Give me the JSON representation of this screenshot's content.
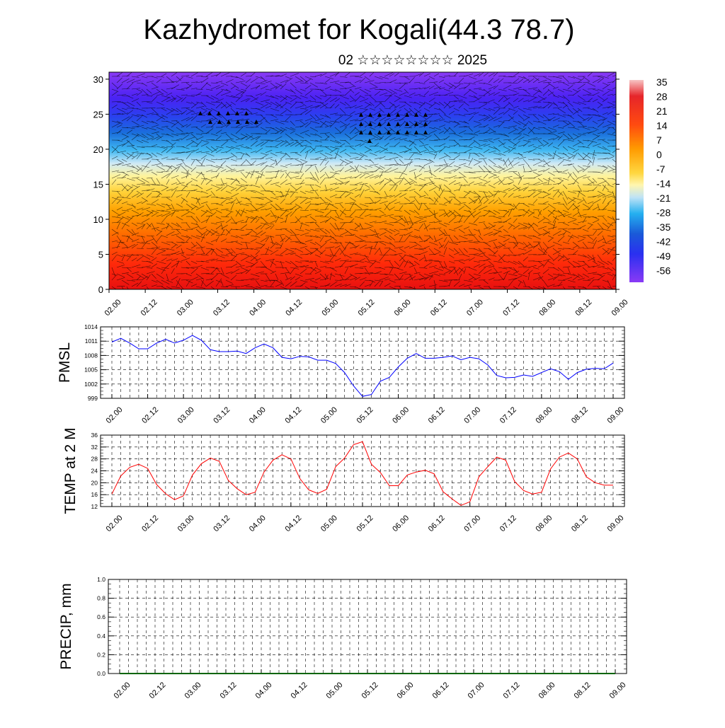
{
  "header": {
    "title": "Kazhydromet for Kogali(44.3 78.7)",
    "subtitle": "02 ☆☆☆☆☆☆☆☆ 2025"
  },
  "colors": {
    "pmsl_line": "#0000ff",
    "temp_line": "#ff0000",
    "colorbar": [
      "#fdc8c8",
      "#e31a1c",
      "#ff4500",
      "#ff8c00",
      "#ffc107",
      "#fff59d",
      "#cfe8f5",
      "#29b6f6",
      "#1565c0",
      "#3f20f5",
      "#7b2ff7"
    ]
  },
  "chart_data": [
    {
      "type": "heatmap",
      "name_id": "cross-section",
      "ylim": [
        0,
        31
      ],
      "y_ticks": [
        0,
        5,
        10,
        15,
        20,
        25,
        30
      ],
      "x_ticks": [
        "02.00",
        "02.12",
        "03.00",
        "03.12",
        "04.00",
        "04.12",
        "05.00",
        "05.12",
        "06.00",
        "06.12",
        "07.00",
        "07.12",
        "08.00",
        "08.12",
        "09.00"
      ],
      "colorbar_labels": [
        "35",
        "28",
        "21",
        "14",
        "7",
        "0",
        "-7",
        "-14",
        "-21",
        "-28",
        "-35",
        "-42",
        "-49",
        "-56"
      ]
    },
    {
      "type": "line",
      "ylabel": "PMSL",
      "ylim": [
        999,
        1014
      ],
      "y_ticks": [
        999,
        1002,
        1005,
        1008,
        1011,
        1014
      ],
      "x_ticks": [
        "02.00",
        "02.12",
        "03.00",
        "03.12",
        "04.00",
        "04.12",
        "05.00",
        "05.12",
        "06.00",
        "06.12",
        "07.00",
        "07.12",
        "08.00",
        "08.12",
        "09.00"
      ],
      "x_step_hours": 3,
      "values": [
        1010.8,
        1011.6,
        1010.6,
        1009.4,
        1009.4,
        1010.6,
        1011.4,
        1010.6,
        1011.2,
        1012.2,
        1011.2,
        1009.2,
        1008.8,
        1008.8,
        1008.9,
        1008.4,
        1009.6,
        1010.4,
        1009.6,
        1007.6,
        1007.3,
        1007.8,
        1007.7,
        1007.0,
        1007.0,
        1006.3,
        1004.4,
        1001.6,
        999.4,
        999.8,
        1002.6,
        1003.4,
        1005.6,
        1007.4,
        1008.4,
        1007.4,
        1007.4,
        1007.6,
        1007.9,
        1007.1,
        1007.6,
        1007.3,
        1006.0,
        1003.8,
        1003.3,
        1003.4,
        1003.9,
        1003.6,
        1004.4,
        1005.2,
        1004.6,
        1003.0,
        1004.4,
        1005.1,
        1005.3,
        1005.2,
        1006.4
      ]
    },
    {
      "type": "line",
      "ylabel": "TEMP at 2 M",
      "ylim": [
        12,
        36
      ],
      "y_ticks": [
        12,
        16,
        20,
        24,
        28,
        32,
        36
      ],
      "x_ticks": [
        "02.00",
        "02.12",
        "03.00",
        "03.12",
        "04.00",
        "04.12",
        "05.00",
        "05.12",
        "06.00",
        "06.12",
        "07.00",
        "07.12",
        "08.00",
        "08.12",
        "09.00"
      ],
      "x_step_hours": 3,
      "values": [
        16.2,
        22.3,
        25.2,
        26.2,
        24.8,
        19.4,
        16.3,
        14.3,
        15.6,
        22.6,
        26.4,
        28.3,
        27.2,
        20.8,
        18.0,
        16.0,
        16.8,
        23.6,
        27.6,
        29.4,
        28.0,
        21.4,
        17.6,
        16.4,
        17.8,
        25.4,
        28.3,
        32.8,
        33.8,
        26.2,
        23.4,
        19.0,
        19.0,
        22.6,
        23.6,
        24.2,
        23.0,
        17.0,
        14.6,
        12.4,
        13.6,
        22.0,
        25.4,
        28.6,
        27.6,
        20.4,
        17.4,
        16.2,
        16.8,
        24.6,
        28.6,
        30.0,
        28.0,
        22.0,
        20.0,
        19.2,
        19.2
      ]
    },
    {
      "type": "line",
      "ylabel": "PRECIP, mm",
      "ylim": [
        0,
        1
      ],
      "y_ticks": [
        "0.0",
        "0.2",
        "0.4",
        "0.6",
        "0.8",
        "1.0"
      ],
      "x_ticks": [
        "02.00",
        "02.12",
        "03.00",
        "03.12",
        "04.00",
        "04.12",
        "05.00",
        "05.12",
        "06.00",
        "06.12",
        "07.00",
        "07.12",
        "08.00",
        "08.12",
        "09.00"
      ],
      "x_step_hours": 3,
      "values": [
        0,
        0,
        0,
        0,
        0,
        0,
        0,
        0,
        0,
        0,
        0,
        0,
        0,
        0,
        0,
        0,
        0,
        0,
        0,
        0,
        0,
        0,
        0,
        0,
        0,
        0,
        0,
        0,
        0,
        0,
        0,
        0,
        0,
        0,
        0,
        0,
        0,
        0,
        0,
        0,
        0,
        0,
        0,
        0,
        0,
        0,
        0,
        0,
        0,
        0,
        0,
        0,
        0,
        0,
        0,
        0,
        0
      ]
    }
  ]
}
